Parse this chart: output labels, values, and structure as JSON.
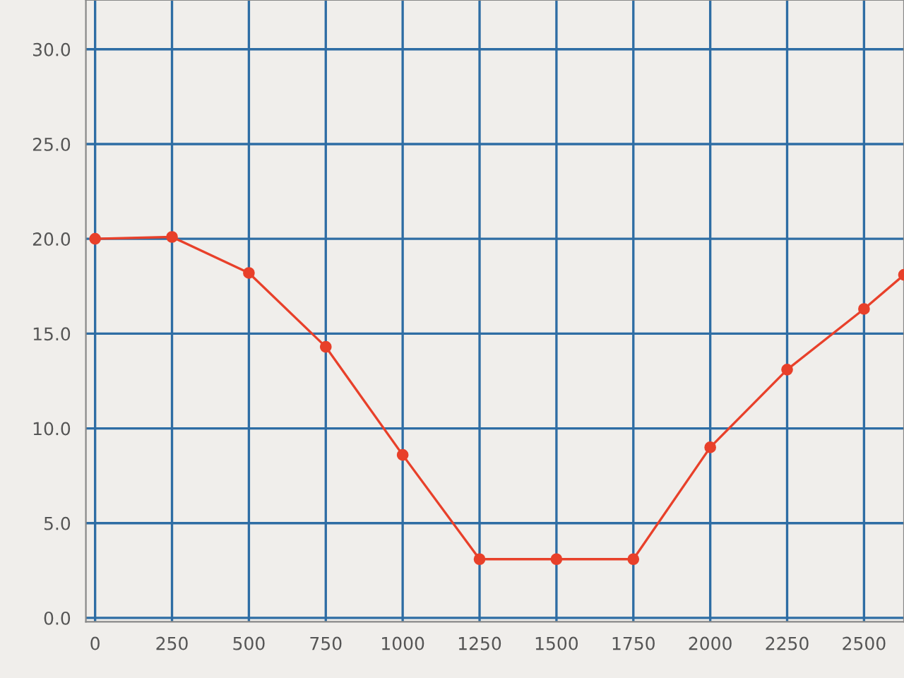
{
  "chart_data": {
    "type": "line",
    "x": [
      0,
      250,
      500,
      750,
      1000,
      1250,
      1500,
      1750,
      2000,
      2250,
      2500,
      2630
    ],
    "series": [
      {
        "color": "#e8402a",
        "values": [
          20.0,
          20.1,
          18.2,
          14.3,
          8.6,
          3.1,
          3.1,
          3.1,
          9.0,
          13.1,
          16.3,
          18.1
        ]
      }
    ],
    "xlim": [
      -30,
      2630
    ],
    "ylim": [
      -0.2,
      32.6
    ],
    "xticks": [
      0,
      250,
      500,
      750,
      1000,
      1250,
      1500,
      1750,
      2000,
      2250,
      2500
    ],
    "yticks": [
      {
        "value": 0,
        "label": "0.0"
      },
      {
        "value": 5,
        "label": "5.0"
      },
      {
        "value": 10,
        "label": "10.0"
      },
      {
        "value": 15,
        "label": "15.0"
      },
      {
        "value": 20,
        "label": "20.0"
      },
      {
        "value": 25,
        "label": "25.0"
      },
      {
        "value": 30,
        "label": "30.0"
      }
    ],
    "grid": true,
    "marker": "circle",
    "line_style": "solid"
  }
}
